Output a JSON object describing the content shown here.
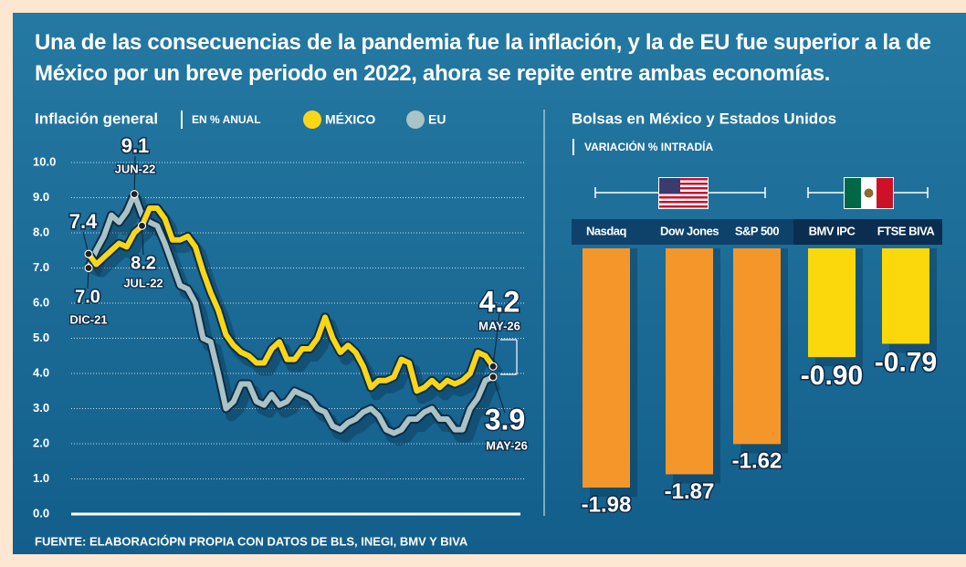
{
  "title": "Una de las consecuencias de la pandemia fue la inflación, y la de EU fue superior a la de México por un breve periodo en 2022, ahora se repite entre ambas economías.",
  "source": "FUENTE: ELABORACIÓPN PROPIA CON DATOS DE BLS, INEGI, BMV Y BIVA",
  "chart_data": [
    {
      "type": "line",
      "title": "Inflación general",
      "subtitle": "EN % ANUAL",
      "categories": [
        "DIC-21",
        null,
        null,
        null,
        null,
        null,
        "JUN-22",
        "JUL-22",
        null,
        null,
        null,
        null,
        null,
        null,
        null,
        null,
        null,
        null,
        null,
        null,
        null,
        null,
        null,
        null,
        null,
        null,
        null,
        null,
        null,
        null,
        null,
        null,
        null,
        null,
        null,
        null,
        null,
        null,
        null,
        null,
        null,
        null,
        null,
        null,
        null,
        null,
        null,
        null,
        null,
        null,
        null,
        null,
        null,
        "MAY-26"
      ],
      "series": [
        {
          "name": "MÉXICO",
          "color": "#f9d716",
          "values": [
            7.4,
            7.1,
            7.3,
            7.5,
            7.7,
            7.6,
            8.0,
            8.2,
            8.7,
            8.7,
            8.4,
            7.8,
            7.8,
            7.9,
            7.6,
            6.9,
            6.3,
            5.8,
            5.1,
            4.8,
            4.6,
            4.5,
            4.3,
            4.3,
            4.7,
            4.9,
            4.4,
            4.4,
            4.7,
            4.7,
            5.0,
            5.6,
            5.0,
            4.6,
            4.8,
            4.6,
            4.2,
            3.6,
            3.8,
            3.8,
            3.9,
            4.4,
            4.3,
            3.5,
            3.6,
            3.8,
            3.6,
            3.8,
            3.7,
            3.8,
            4.0,
            4.6,
            4.5,
            4.2
          ],
          "value_labels": [
            "7.4",
            null,
            null,
            null,
            null,
            null,
            null,
            "8.2",
            null,
            null,
            null,
            null,
            null,
            null,
            null,
            null,
            null,
            null,
            null,
            null,
            null,
            null,
            null,
            null,
            null,
            null,
            null,
            null,
            null,
            null,
            null,
            null,
            null,
            null,
            null,
            null,
            null,
            null,
            null,
            null,
            null,
            null,
            null,
            null,
            null,
            null,
            null,
            null,
            null,
            null,
            null,
            null,
            null,
            "4.2"
          ]
        },
        {
          "name": "EU",
          "color": "#a9c3c6",
          "values": [
            7.0,
            7.5,
            7.9,
            8.5,
            8.3,
            8.6,
            9.1,
            8.5,
            8.3,
            8.2,
            7.7,
            7.1,
            6.5,
            6.4,
            6.0,
            5.0,
            4.9,
            4.0,
            3.0,
            3.2,
            3.7,
            3.7,
            3.2,
            3.1,
            3.4,
            3.1,
            3.2,
            3.5,
            3.4,
            3.3,
            3.0,
            2.9,
            2.5,
            2.4,
            2.6,
            2.7,
            2.9,
            3.0,
            2.8,
            2.4,
            2.3,
            2.4,
            2.7,
            2.7,
            2.9,
            3.0,
            2.7,
            2.7,
            2.4,
            2.4,
            3.0,
            3.3,
            3.8,
            3.9
          ],
          "value_labels": [
            "7.0",
            null,
            null,
            null,
            null,
            null,
            "9.1",
            null,
            null,
            null,
            null,
            null,
            null,
            null,
            null,
            null,
            null,
            null,
            null,
            null,
            null,
            null,
            null,
            null,
            null,
            null,
            null,
            null,
            null,
            null,
            null,
            null,
            null,
            null,
            null,
            null,
            null,
            null,
            null,
            null,
            null,
            null,
            null,
            null,
            null,
            null,
            null,
            null,
            null,
            null,
            null,
            null,
            null,
            "3.9"
          ]
        }
      ],
      "ylim": [
        0,
        10
      ],
      "yticks": [
        {
          "value": 0,
          "label": "0.0"
        },
        {
          "value": 1,
          "label": "1.0"
        },
        {
          "value": 2,
          "label": "2.0"
        },
        {
          "value": 3,
          "label": "3.0"
        },
        {
          "value": 4,
          "label": "4.0"
        },
        {
          "value": 5,
          "label": "5.0"
        },
        {
          "value": 6,
          "label": "6.0"
        },
        {
          "value": 7,
          "label": "7.0"
        },
        {
          "value": 8,
          "label": "8.0"
        },
        {
          "value": 9,
          "label": "9.0"
        },
        {
          "value": 10,
          "label": "10.0"
        }
      ],
      "grid": true
    },
    {
      "type": "bar",
      "title": "Bolsas en México y Estados Unidos",
      "subtitle": "VARIACIÓN % INTRADÍA",
      "categories": [
        "Nasdaq",
        "Dow Jones",
        "S&P 500",
        "BMV IPC",
        "FTSE BIVA"
      ],
      "values": [
        -1.98,
        -1.87,
        -1.62,
        -0.9,
        -0.79
      ],
      "value_labels": [
        "-1.98",
        "-1.87",
        "-1.62",
        "-0.90",
        "-0.79"
      ],
      "colors": [
        "#f5962b",
        "#f5962b",
        "#f5962b",
        "#fbd80c",
        "#fbd80c"
      ]
    }
  ]
}
